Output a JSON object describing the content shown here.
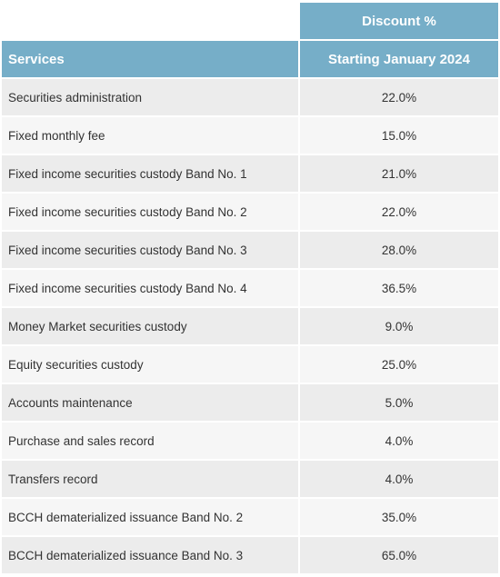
{
  "table": {
    "top_header": "Discount %",
    "header": {
      "services": "Services",
      "starting": "Starting January 2024"
    },
    "rows": [
      {
        "service": "Securities administration",
        "value": "22.0%"
      },
      {
        "service": "Fixed monthly fee",
        "value": "15.0%"
      },
      {
        "service": "Fixed income securities custody Band No. 1",
        "value": "21.0%"
      },
      {
        "service": "Fixed income securities custody Band No. 2",
        "value": "22.0%"
      },
      {
        "service": "Fixed income securities custody Band No. 3",
        "value": "28.0%"
      },
      {
        "service": "Fixed income securities custody Band No. 4",
        "value": "36.5%"
      },
      {
        "service": "Money Market securities custody",
        "value": "9.0%"
      },
      {
        "service": "Equity securities custody",
        "value": "25.0%"
      },
      {
        "service": "Accounts maintenance",
        "value": "5.0%"
      },
      {
        "service": "Purchase and sales record",
        "value": "4.0%"
      },
      {
        "service": "Transfers record",
        "value": "4.0%"
      },
      {
        "service": "BCCH dematerialized issuance Band No. 2",
        "value": "35.0%"
      },
      {
        "service": "BCCH dematerialized issuance Band No. 3",
        "value": "65.0%"
      }
    ]
  }
}
